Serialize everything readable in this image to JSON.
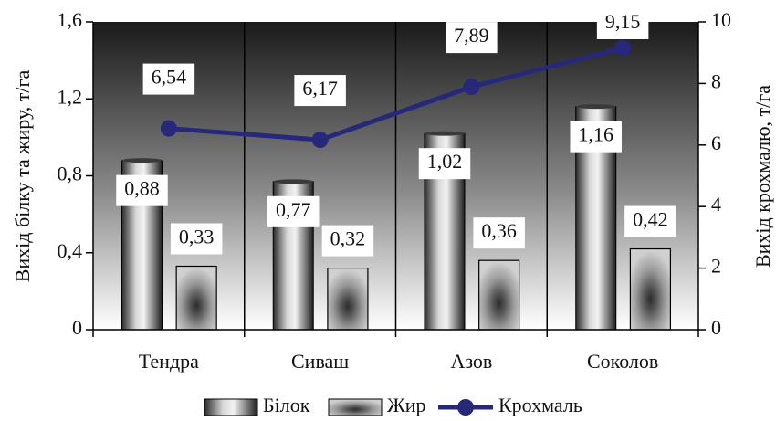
{
  "chart_data": {
    "type": "bar",
    "categories": [
      "Тендра",
      "Сиваш",
      "Азов",
      "Соколов"
    ],
    "series": [
      {
        "name": "Білок",
        "type": "bar",
        "axis": "left",
        "values": [
          0.88,
          0.77,
          1.02,
          1.16
        ],
        "labels": [
          "0,88",
          "0,77",
          "1,02",
          "1,16"
        ]
      },
      {
        "name": "Жир",
        "type": "bar",
        "axis": "left",
        "values": [
          0.33,
          0.32,
          0.36,
          0.42
        ],
        "labels": [
          "0,33",
          "0,32",
          "0,36",
          "0,42"
        ]
      },
      {
        "name": "Крохмаль",
        "type": "line",
        "axis": "right",
        "values": [
          6.54,
          6.17,
          7.89,
          9.15
        ],
        "labels": [
          "6,54",
          "6,17",
          "7,89",
          "9,15"
        ],
        "color": "#27287a"
      }
    ],
    "ylabel_left": "Вихід білку та жиру, т/га",
    "ylabel_right": "Вихід крохмалю, т/га",
    "ylim_left": [
      0,
      1.6
    ],
    "ylim_right": [
      0,
      10
    ],
    "yticks_left": [
      0,
      0.4,
      0.8,
      1.2,
      1.6
    ],
    "yticks_left_labels": [
      "0",
      "0,4",
      "0,8",
      "1,2",
      "1,6"
    ],
    "yticks_right": [
      0,
      2,
      4,
      6,
      8,
      10
    ],
    "yticks_right_labels": [
      "0",
      "2",
      "4",
      "6",
      "8",
      "10"
    ],
    "legend_position": "bottom",
    "grid": "vertical category separators",
    "background": "dark-to-light vertical gradient"
  }
}
